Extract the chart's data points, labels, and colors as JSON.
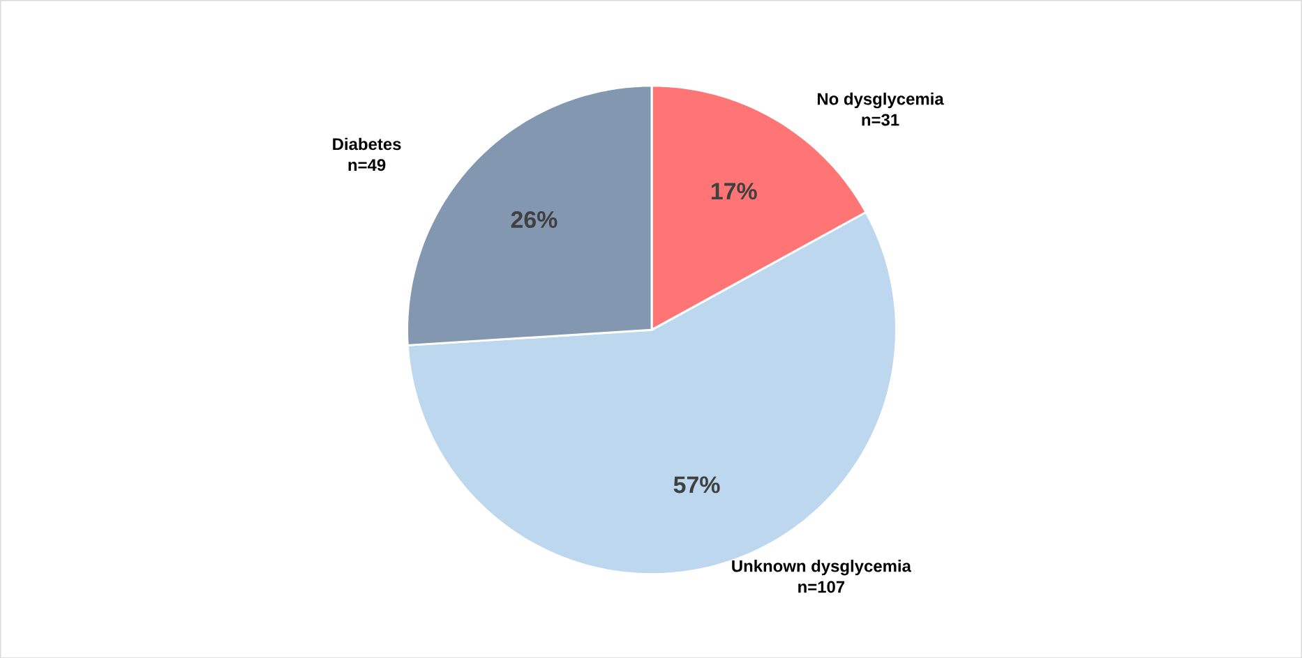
{
  "chart_data": {
    "type": "pie",
    "categories": [
      "No dysglycemia",
      "Unknown dysglycemia",
      "Diabetes"
    ],
    "values": [
      17,
      57,
      26
    ],
    "value_labels": [
      "17%",
      "57%",
      "26%"
    ],
    "colors": [
      "#ff7575",
      "#bdd7ee",
      "#8497b0"
    ],
    "annotations": [
      "n=31",
      "n=107",
      "n=49"
    ]
  }
}
